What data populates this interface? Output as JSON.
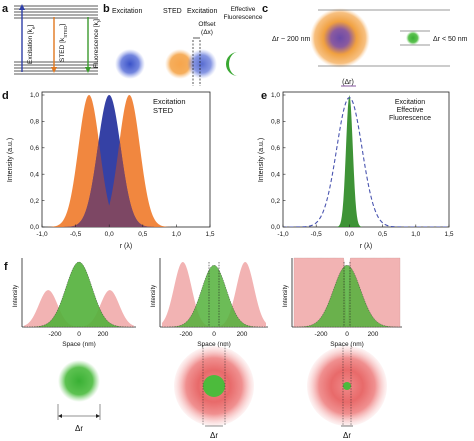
{
  "panels": {
    "a": {
      "label": "a",
      "excitation": "Excitation [k",
      "excitation_sub": "e",
      "sted": "STED [k",
      "sted_sub": "STED",
      "fluorescence": "Fluorescence [k",
      "fluorescence_sub": "f"
    },
    "b": {
      "label": "b",
      "excitation": "Excitation",
      "sted": "STED",
      "excitation2": "Excitation",
      "effective_line1": "Effective",
      "effective_line2": "Fluorescence",
      "offset_line1": "Offset",
      "offset_line2": "(Δx)"
    },
    "c": {
      "label": "c",
      "big": "Δr ~ 200 nm",
      "small": "Δr < 50 nm"
    },
    "d": {
      "label": "d",
      "legend_excitation": "Excitation",
      "legend_sted": "STED",
      "ylabel": "Intensity (a.u.)",
      "xlabel": "r (λ)",
      "xticks": [
        "-1,0",
        "-0,5",
        "0,0",
        "0,5",
        "1,0",
        "1,5"
      ],
      "yticks": [
        "0,0",
        "0,2",
        "0,4",
        "0,6",
        "0,8",
        "1,0"
      ]
    },
    "e": {
      "label": "e",
      "top": "(Δr)",
      "legend_line1": "Excitation",
      "legend_line2": "Effective",
      "legend_line3": "Fluorescence",
      "ylabel": "Intensity (a.u.)",
      "xlabel": "r (λ)",
      "xticks": [
        "-1,0",
        "-0,5",
        "0,0",
        "0,5",
        "1,0",
        "1,5"
      ],
      "yticks": [
        "0,0",
        "0,2",
        "0,4",
        "0,6",
        "0,8",
        "1,0"
      ]
    },
    "f": {
      "label": "f",
      "ylabel": "Intensity",
      "xlabel": "Space (nm)",
      "xticks": [
        "-200",
        "0",
        "200"
      ],
      "dr": "Δr"
    }
  },
  "colors": {
    "excitation": "#2f3fa8",
    "sted": "#f08a3c",
    "fluorescence": "#3a9a2c",
    "sted_pink": "#f2b3b3"
  },
  "chart_data": [
    {
      "type": "area",
      "panel": "d",
      "xlabel": "r (λ)",
      "ylabel": "Intensity (a.u.)",
      "xlim": [
        -1.0,
        1.5
      ],
      "ylim": [
        0,
        1.0
      ],
      "series": [
        {
          "name": "Excitation",
          "shape": "gaussian",
          "center": 0.0,
          "fwhm": 0.4,
          "peak": 1.0
        },
        {
          "name": "STED",
          "shape": "gaussian-pair",
          "centers": [
            -0.3,
            0.3
          ],
          "fwhm": 0.37,
          "peak": 1.0
        }
      ]
    },
    {
      "type": "area",
      "panel": "e",
      "xlabel": "r (λ)",
      "ylabel": "Intensity (a.u.)",
      "xlim": [
        -1.0,
        1.5
      ],
      "ylim": [
        0,
        1.0
      ],
      "series": [
        {
          "name": "Excitation",
          "shape": "gaussian",
          "center": 0.0,
          "fwhm": 0.45,
          "peak": 0.98,
          "style": "dashed"
        },
        {
          "name": "Effective Fluorescence",
          "shape": "gaussian",
          "center": 0.0,
          "fwhm": 0.12,
          "peak": 1.0
        }
      ]
    }
  ]
}
